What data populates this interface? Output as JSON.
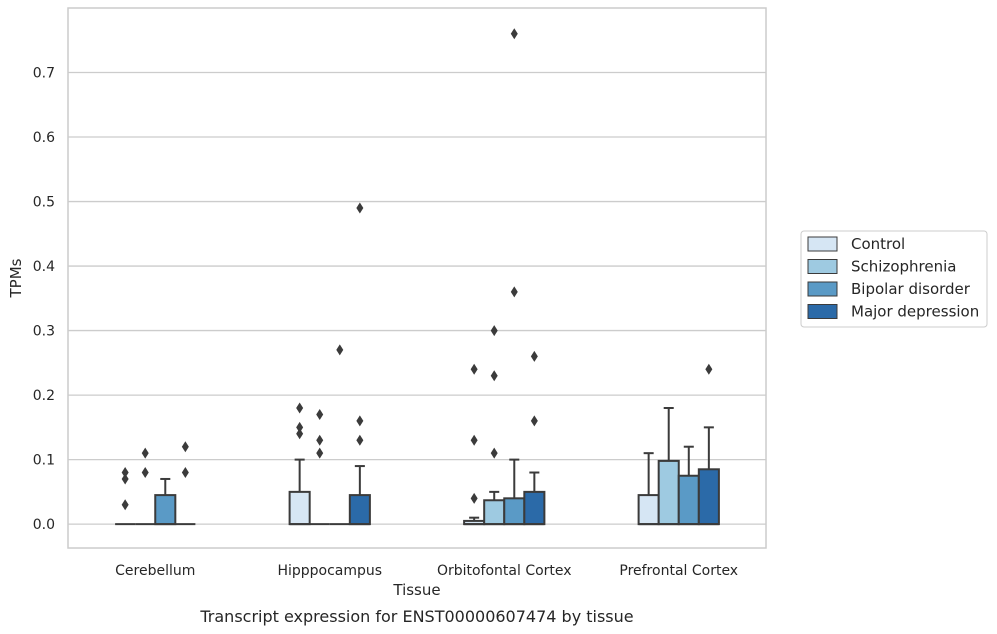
{
  "caption": "Transcript expression for ENST00000607474 by tissue",
  "chart_data": {
    "type": "box",
    "xlabel": "Tissue",
    "ylabel": "TPMs",
    "ylim": [
      -0.037,
      0.8
    ],
    "yticks": [
      0.0,
      0.1,
      0.2,
      0.3,
      0.4,
      0.5,
      0.6,
      0.7
    ],
    "ytick_labels": [
      "0.0",
      "0.1",
      "0.2",
      "0.3",
      "0.4",
      "0.5",
      "0.6",
      "0.7"
    ],
    "grid": "horizontal",
    "legend_position": "right",
    "categories": [
      "Cerebellum",
      "Hipppocampus",
      "Orbitofontal Cortex",
      "Prefrontal Cortex"
    ],
    "series": [
      {
        "name": "Control",
        "color": "#d6e6f4",
        "boxes": [
          {
            "q1": 0,
            "median": 0,
            "q3": 0,
            "whisker_low": 0,
            "whisker_high": 0,
            "outliers": [
              0.03,
              0.07,
              0.08
            ]
          },
          {
            "q1": 0,
            "median": 0,
            "q3": 0.05,
            "whisker_low": 0,
            "whisker_high": 0.1,
            "outliers": [
              0.14,
              0.15,
              0.18
            ]
          },
          {
            "q1": 0,
            "median": 0,
            "q3": 0.005,
            "whisker_low": 0,
            "whisker_high": 0.01,
            "outliers": [
              0.04,
              0.13,
              0.24
            ]
          },
          {
            "q1": 0,
            "median": 0,
            "q3": 0.045,
            "whisker_low": 0,
            "whisker_high": 0.11,
            "outliers": []
          }
        ]
      },
      {
        "name": "Schizophrenia",
        "color": "#9ecae1",
        "boxes": [
          {
            "q1": 0,
            "median": 0,
            "q3": 0,
            "whisker_low": 0,
            "whisker_high": 0,
            "outliers": [
              0.08,
              0.11
            ]
          },
          {
            "q1": 0,
            "median": 0,
            "q3": 0,
            "whisker_low": 0,
            "whisker_high": 0,
            "outliers": [
              0.11,
              0.13,
              0.17
            ]
          },
          {
            "q1": 0,
            "median": 0,
            "q3": 0.037,
            "whisker_low": 0,
            "whisker_high": 0.05,
            "outliers": [
              0.11,
              0.23,
              0.3
            ]
          },
          {
            "q1": 0,
            "median": 0,
            "q3": 0.098,
            "whisker_low": 0,
            "whisker_high": 0.18,
            "outliers": []
          }
        ]
      },
      {
        "name": "Bipolar disorder",
        "color": "#5a9ac6",
        "boxes": [
          {
            "q1": 0,
            "median": 0,
            "q3": 0.045,
            "whisker_low": 0,
            "whisker_high": 0.07,
            "outliers": []
          },
          {
            "q1": 0,
            "median": 0,
            "q3": 0,
            "whisker_low": 0,
            "whisker_high": 0,
            "outliers": [
              0.27
            ]
          },
          {
            "q1": 0,
            "median": 0,
            "q3": 0.04,
            "whisker_low": 0,
            "whisker_high": 0.1,
            "outliers": [
              0.36,
              0.76
            ]
          },
          {
            "q1": 0,
            "median": 0,
            "q3": 0.075,
            "whisker_low": 0,
            "whisker_high": 0.12,
            "outliers": []
          }
        ]
      },
      {
        "name": "Major depression",
        "color": "#2b6aa8",
        "boxes": [
          {
            "q1": 0,
            "median": 0,
            "q3": 0,
            "whisker_low": 0,
            "whisker_high": 0,
            "outliers": [
              0.08,
              0.12
            ]
          },
          {
            "q1": 0,
            "median": 0,
            "q3": 0.045,
            "whisker_low": 0,
            "whisker_high": 0.09,
            "outliers": [
              0.13,
              0.16,
              0.49
            ]
          },
          {
            "q1": 0,
            "median": 0,
            "q3": 0.05,
            "whisker_low": 0,
            "whisker_high": 0.08,
            "outliers": [
              0.16,
              0.26
            ]
          },
          {
            "q1": 0,
            "median": 0,
            "q3": 0.085,
            "whisker_low": 0,
            "whisker_high": 0.15,
            "outliers": [
              0.24
            ]
          }
        ]
      }
    ]
  }
}
